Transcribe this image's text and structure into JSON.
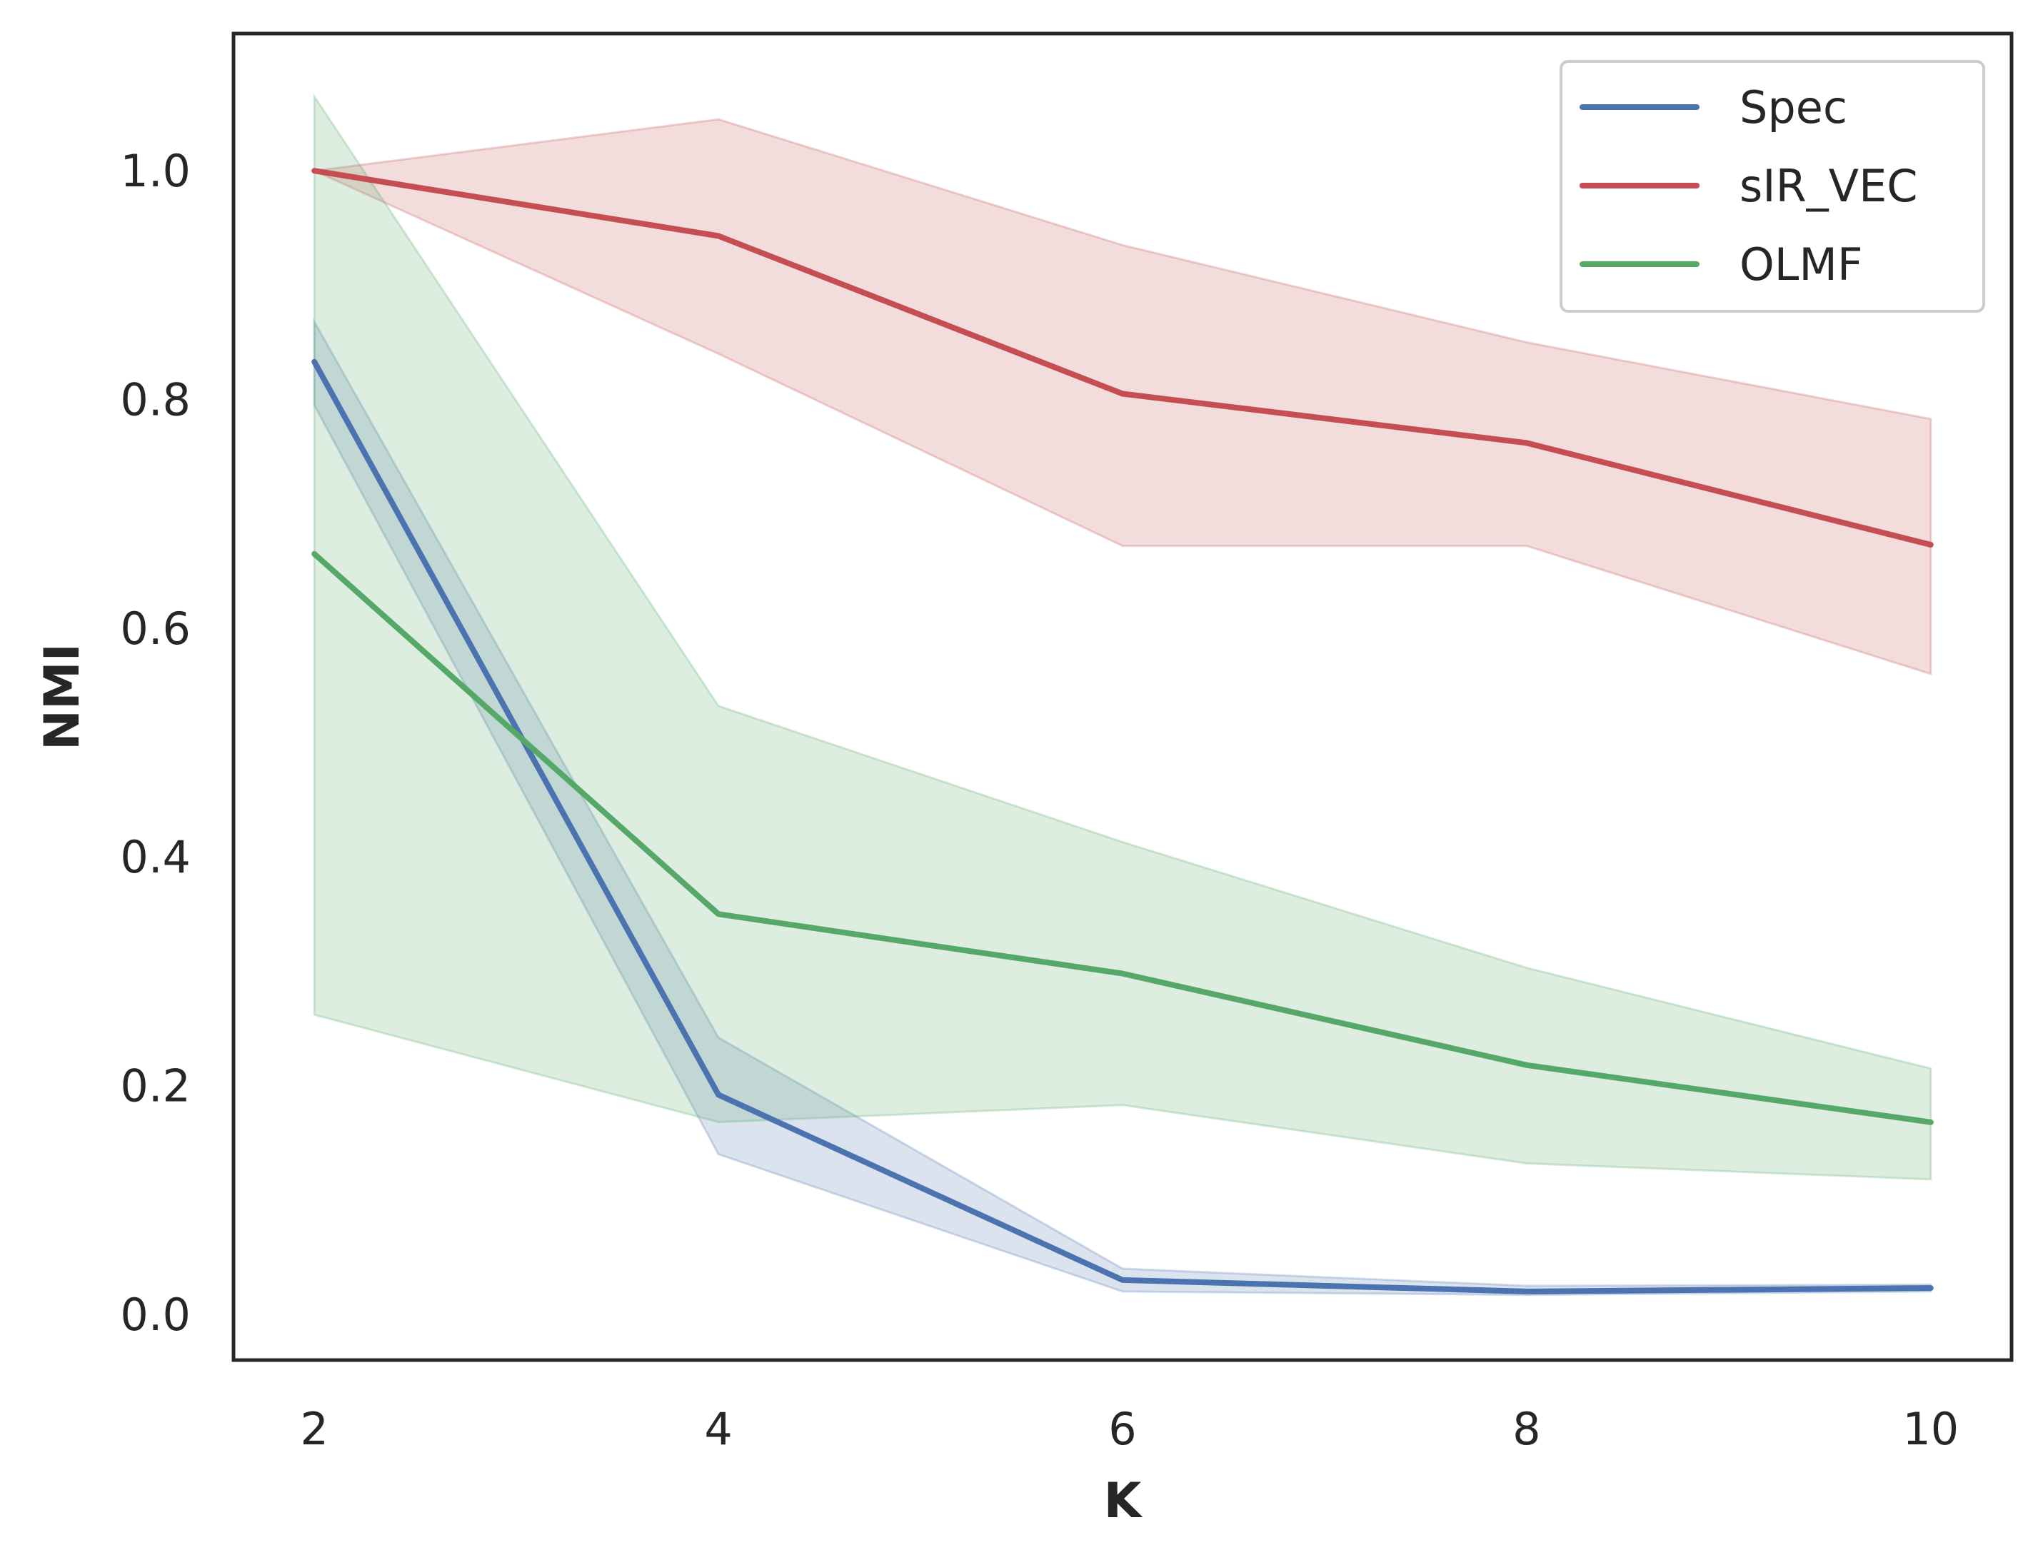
{
  "chart_data": {
    "type": "line",
    "title": "",
    "xlabel": "K",
    "ylabel": "NMI",
    "x": [
      2,
      4,
      6,
      8,
      10
    ],
    "xlim": [
      1.6,
      10.4
    ],
    "ylim": [
      -0.04,
      1.12
    ],
    "xticks": [
      "2",
      "4",
      "6",
      "8",
      "10"
    ],
    "yticks": [
      "0.0",
      "0.2",
      "0.4",
      "0.6",
      "0.8",
      "1.0"
    ],
    "grid": false,
    "legend_position": "top-right",
    "series": [
      {
        "name": "Spec",
        "color": "#4c72b0",
        "values": [
          0.833,
          0.192,
          0.03,
          0.02,
          0.023
        ],
        "lower": [
          0.795,
          0.14,
          0.02,
          0.017,
          0.02
        ],
        "upper": [
          0.868,
          0.242,
          0.04,
          0.025,
          0.026
        ]
      },
      {
        "name": "sIR_VEC",
        "color": "#c44e52",
        "values": [
          1.0,
          0.943,
          0.805,
          0.762,
          0.673
        ],
        "lower": [
          1.0,
          0.84,
          0.672,
          0.672,
          0.56
        ],
        "upper": [
          1.0,
          1.045,
          0.935,
          0.85,
          0.783
        ]
      },
      {
        "name": "OLMF",
        "color": "#55a868",
        "values": [
          0.665,
          0.35,
          0.298,
          0.218,
          0.168
        ],
        "lower": [
          0.262,
          0.168,
          0.183,
          0.132,
          0.118
        ],
        "upper": [
          1.065,
          0.532,
          0.413,
          0.303,
          0.215
        ]
      }
    ]
  }
}
